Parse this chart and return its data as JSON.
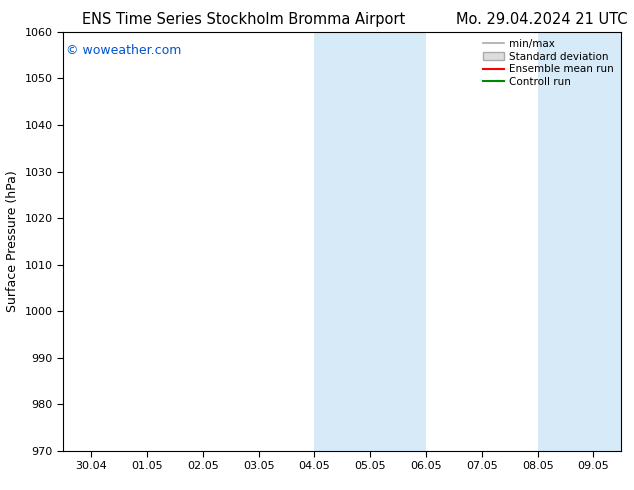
{
  "title_left": "ENS Time Series Stockholm Bromma Airport",
  "title_right": "Mo. 29.04.2024 21 UTC",
  "ylabel": "Surface Pressure (hPa)",
  "ylim": [
    970,
    1060
  ],
  "yticks": [
    970,
    980,
    990,
    1000,
    1010,
    1020,
    1030,
    1040,
    1050,
    1060
  ],
  "xtick_labels": [
    "30.04",
    "01.05",
    "02.05",
    "03.05",
    "04.05",
    "05.05",
    "06.05",
    "07.05",
    "08.05",
    "09.05"
  ],
  "shaded_bands": [
    {
      "xstart": 4.0,
      "xend": 6.0,
      "color": "#d6eaf8"
    },
    {
      "xstart": 8.0,
      "xend": 9.5,
      "color": "#d6eaf8"
    }
  ],
  "watermark": "© woweather.com",
  "watermark_color": "#0055cc",
  "legend_labels": [
    "min/max",
    "Standard deviation",
    "Ensemble mean run",
    "Controll run"
  ],
  "legend_line_color": "#aaaaaa",
  "legend_patch_color": "#dddddd",
  "legend_red": "#ff0000",
  "legend_green": "#008800",
  "background_color": "#ffffff",
  "plot_bg_color": "#ffffff",
  "title_fontsize": 10.5,
  "ylabel_fontsize": 9,
  "tick_fontsize": 8,
  "watermark_fontsize": 9,
  "legend_fontsize": 7.5
}
